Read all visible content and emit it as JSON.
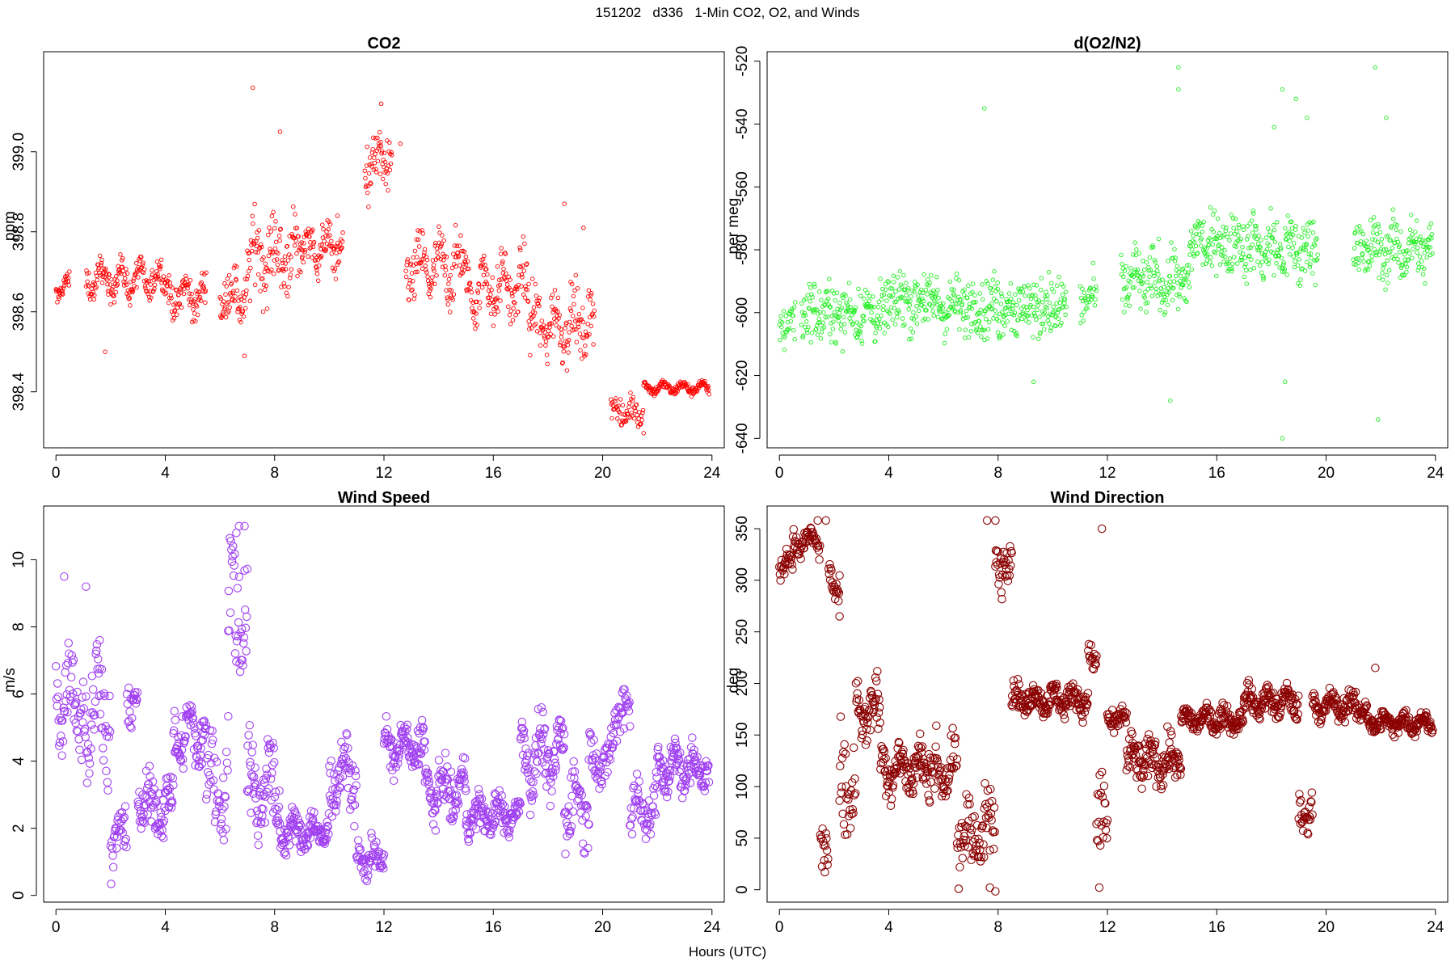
{
  "figure": {
    "suptitle": "151202   d336   1-Min CO2, O2, and Winds",
    "xlabel": "Hours (UTC)"
  },
  "chart_data": [
    {
      "type": "scatter",
      "title": "CO2",
      "ylabel": "ppm",
      "xlabel": "",
      "color": "#ff0000",
      "marker_size": "small",
      "xlim": [
        -0.45,
        24.45
      ],
      "ylim": [
        398.26,
        399.25
      ],
      "xticks": [
        0,
        4,
        8,
        12,
        16,
        20,
        24
      ],
      "yticks": [
        398.4,
        398.6,
        398.8,
        399.0
      ],
      "ytick_labels": [
        "398.4",
        "398.6",
        "398.8",
        "399.0"
      ],
      "segments": [
        {
          "x0": 0.0,
          "x1": 0.5,
          "mean": 398.66,
          "noise": 0.03,
          "wave": 0.02,
          "step": 0.017
        },
        {
          "x0": 1.1,
          "x1": 4.0,
          "mean": 398.68,
          "noise": 0.045,
          "wave": 0.03,
          "step": 0.017
        },
        {
          "x0": 4.0,
          "x1": 5.5,
          "mean": 398.64,
          "noise": 0.05,
          "wave": 0.03,
          "step": 0.017
        },
        {
          "x0": 6.0,
          "x1": 7.0,
          "mean": 398.64,
          "noise": 0.07,
          "wave": 0.03,
          "step": 0.017
        },
        {
          "x0": 7.0,
          "x1": 9.0,
          "mean": 398.74,
          "noise": 0.11,
          "wave": 0.04,
          "step": 0.017
        },
        {
          "x0": 9.0,
          "x1": 10.5,
          "mean": 398.76,
          "noise": 0.06,
          "wave": 0.03,
          "step": 0.017
        },
        {
          "x0": 11.3,
          "x1": 12.3,
          "mean": 398.97,
          "noise": 0.09,
          "wave": 0.03,
          "step": 0.017
        },
        {
          "x0": 12.8,
          "x1": 15.0,
          "mean": 398.71,
          "noise": 0.09,
          "wave": 0.04,
          "step": 0.017
        },
        {
          "x0": 15.0,
          "x1": 17.3,
          "mean": 398.66,
          "noise": 0.08,
          "wave": 0.05,
          "step": 0.017
        },
        {
          "x0": 17.3,
          "x1": 19.7,
          "mean": 398.57,
          "noise": 0.09,
          "wave": 0.04,
          "step": 0.017
        },
        {
          "x0": 20.3,
          "x1": 21.5,
          "mean": 398.35,
          "noise": 0.04,
          "wave": 0.02,
          "step": 0.02
        },
        {
          "x0": 21.5,
          "x1": 23.9,
          "mean": 398.41,
          "noise": 0.015,
          "wave": 0.01,
          "step": 0.017
        }
      ],
      "outliers": [
        {
          "x": 7.2,
          "y": 399.16
        },
        {
          "x": 11.9,
          "y": 399.12
        },
        {
          "x": 8.2,
          "y": 399.05
        },
        {
          "x": 12.6,
          "y": 399.02
        },
        {
          "x": 18.6,
          "y": 398.87
        },
        {
          "x": 19.3,
          "y": 398.81
        },
        {
          "x": 1.8,
          "y": 398.5
        },
        {
          "x": 6.9,
          "y": 398.49
        },
        {
          "x": 10.3,
          "y": 398.84
        }
      ]
    },
    {
      "type": "scatter",
      "title": "d(O2/N2)",
      "ylabel": "per meg",
      "xlabel": "",
      "color": "#22ee22",
      "marker_size": "small",
      "xlim": [
        -0.45,
        24.45
      ],
      "ylim": [
        -643,
        -517
      ],
      "xticks": [
        0,
        4,
        8,
        12,
        16,
        20,
        24
      ],
      "yticks": [
        -640,
        -620,
        -600,
        -580,
        -560,
        -540,
        -520
      ],
      "ytick_labels": [
        "-640",
        "-620",
        "-600",
        "-580",
        "-560",
        "-540",
        "-520"
      ],
      "segments": [
        {
          "x0": 0.0,
          "x1": 0.6,
          "mean": -603,
          "noise": 9,
          "wave": 2,
          "step": 0.02
        },
        {
          "x0": 0.8,
          "x1": 4.0,
          "mean": -600,
          "noise": 11,
          "wave": 2,
          "step": 0.017
        },
        {
          "x0": 4.0,
          "x1": 5.6,
          "mean": -596,
          "noise": 12,
          "wave": 2,
          "step": 0.017
        },
        {
          "x0": 5.6,
          "x1": 8.0,
          "mean": -598,
          "noise": 11,
          "wave": 2,
          "step": 0.017
        },
        {
          "x0": 8.0,
          "x1": 10.5,
          "mean": -598,
          "noise": 12,
          "wave": 2,
          "step": 0.017
        },
        {
          "x0": 11.0,
          "x1": 11.6,
          "mean": -596,
          "noise": 9,
          "wave": 2,
          "step": 0.02
        },
        {
          "x0": 12.5,
          "x1": 15.0,
          "mean": -590,
          "noise": 12,
          "wave": 3,
          "step": 0.017
        },
        {
          "x0": 15.0,
          "x1": 17.5,
          "mean": -578,
          "noise": 12,
          "wave": 3,
          "step": 0.017
        },
        {
          "x0": 17.5,
          "x1": 19.7,
          "mean": -580,
          "noise": 13,
          "wave": 3,
          "step": 0.017
        },
        {
          "x0": 21.0,
          "x1": 23.9,
          "mean": -580,
          "noise": 11,
          "wave": 3,
          "step": 0.017
        }
      ],
      "outliers": [
        {
          "x": 14.6,
          "y": -522
        },
        {
          "x": 14.6,
          "y": -529
        },
        {
          "x": 21.8,
          "y": -522
        },
        {
          "x": 7.5,
          "y": -535
        },
        {
          "x": 18.4,
          "y": -529
        },
        {
          "x": 18.9,
          "y": -532
        },
        {
          "x": 18.1,
          "y": -541
        },
        {
          "x": 19.3,
          "y": -538
        },
        {
          "x": 22.2,
          "y": -538
        },
        {
          "x": 14.3,
          "y": -628
        },
        {
          "x": 18.4,
          "y": -640
        },
        {
          "x": 21.9,
          "y": -634
        },
        {
          "x": 18.5,
          "y": -622
        },
        {
          "x": 9.3,
          "y": -622
        }
      ]
    },
    {
      "type": "scatter",
      "title": "Wind Speed",
      "ylabel": "m/s",
      "xlabel": "",
      "color": "#a040f0",
      "marker_size": "large",
      "xlim": [
        -0.45,
        24.45
      ],
      "ylim": [
        -0.2,
        11.6
      ],
      "xticks": [
        0,
        4,
        8,
        12,
        16,
        20,
        24
      ],
      "yticks": [
        0,
        2,
        4,
        6,
        8,
        10
      ],
      "ytick_labels": [
        "0",
        "2",
        "4",
        "6",
        "8",
        "10"
      ],
      "segments": [
        {
          "x0": 0.0,
          "x1": 1.0,
          "mean": 6.0,
          "noise": 1.6,
          "wave": 0.8,
          "step": 0.02
        },
        {
          "x0": 1.0,
          "x1": 2.0,
          "mean": 5.6,
          "noise": 1.8,
          "wave": 1.2,
          "step": 0.02
        },
        {
          "x0": 2.0,
          "x1": 2.6,
          "mean": 1.7,
          "noise": 1.0,
          "wave": 0.5,
          "step": 0.02
        },
        {
          "x0": 2.6,
          "x1": 3.0,
          "mean": 5.8,
          "noise": 0.7,
          "wave": 0.3,
          "step": 0.02
        },
        {
          "x0": 3.0,
          "x1": 4.3,
          "mean": 2.7,
          "noise": 0.9,
          "wave": 0.4,
          "step": 0.017
        },
        {
          "x0": 4.3,
          "x1": 5.5,
          "mean": 4.8,
          "noise": 1.0,
          "wave": 0.6,
          "step": 0.017
        },
        {
          "x0": 5.5,
          "x1": 6.3,
          "mean": 3.3,
          "noise": 1.6,
          "wave": 0.8,
          "step": 0.02
        },
        {
          "x0": 6.3,
          "x1": 7.0,
          "mean": 8.6,
          "noise": 2.4,
          "wave": 1.0,
          "step": 0.02
        },
        {
          "x0": 7.0,
          "x1": 8.2,
          "mean": 3.2,
          "noise": 1.5,
          "wave": 0.8,
          "step": 0.017
        },
        {
          "x0": 8.2,
          "x1": 10.0,
          "mean": 1.9,
          "noise": 0.6,
          "wave": 0.3,
          "step": 0.017
        },
        {
          "x0": 10.0,
          "x1": 11.0,
          "mean": 3.6,
          "noise": 0.9,
          "wave": 0.6,
          "step": 0.017
        },
        {
          "x0": 11.0,
          "x1": 12.0,
          "mean": 1.1,
          "noise": 0.6,
          "wave": 0.3,
          "step": 0.02
        },
        {
          "x0": 12.0,
          "x1": 13.5,
          "mean": 4.4,
          "noise": 0.7,
          "wave": 0.4,
          "step": 0.017
        },
        {
          "x0": 13.5,
          "x1": 15.0,
          "mean": 3.1,
          "noise": 0.8,
          "wave": 0.5,
          "step": 0.017
        },
        {
          "x0": 15.0,
          "x1": 17.0,
          "mean": 2.4,
          "noise": 0.6,
          "wave": 0.3,
          "step": 0.017
        },
        {
          "x0": 17.0,
          "x1": 18.6,
          "mean": 4.1,
          "noise": 1.0,
          "wave": 0.8,
          "step": 0.017
        },
        {
          "x0": 18.6,
          "x1": 19.5,
          "mean": 2.8,
          "noise": 1.2,
          "wave": 0.6,
          "step": 0.02
        },
        {
          "x0": 19.5,
          "x1": 20.4,
          "mean": 4.0,
          "noise": 0.9,
          "wave": 0.5,
          "step": 0.02
        },
        {
          "x0": 20.4,
          "x1": 21.0,
          "mean": 5.5,
          "noise": 0.8,
          "wave": 0.4,
          "step": 0.02
        },
        {
          "x0": 21.0,
          "x1": 22.0,
          "mean": 2.6,
          "noise": 0.9,
          "wave": 0.5,
          "step": 0.02
        },
        {
          "x0": 22.0,
          "x1": 23.9,
          "mean": 3.8,
          "noise": 0.7,
          "wave": 0.4,
          "step": 0.017
        }
      ],
      "outliers": [
        {
          "x": 6.7,
          "y": 11.0
        },
        {
          "x": 6.9,
          "y": 11.0
        },
        {
          "x": 6.6,
          "y": 10.8
        },
        {
          "x": 0.3,
          "y": 9.5
        },
        {
          "x": 1.6,
          "y": 7.6
        },
        {
          "x": 1.1,
          "y": 9.2
        }
      ]
    },
    {
      "type": "scatter",
      "title": "Wind Direction",
      "ylabel": "deg",
      "xlabel": "",
      "color": "#8b0000",
      "marker_size": "large",
      "xlim": [
        -0.45,
        24.45
      ],
      "ylim": [
        -12,
        372
      ],
      "xticks": [
        0,
        4,
        8,
        12,
        16,
        20,
        24
      ],
      "yticks": [
        0,
        50,
        100,
        150,
        200,
        250,
        300,
        350
      ],
      "ytick_labels": [
        "0",
        "50",
        "100",
        "150",
        "200",
        "250",
        "300",
        "350"
      ],
      "segments": [
        {
          "x0": 0.0,
          "x1": 0.5,
          "mean": 315,
          "noise": 12,
          "wave": 6,
          "step": 0.02
        },
        {
          "x0": 0.5,
          "x1": 1.5,
          "mean": 338,
          "noise": 12,
          "wave": 6,
          "step": 0.02
        },
        {
          "x0": 1.5,
          "x1": 1.8,
          "mean": 35,
          "noise": 28,
          "wave": 8,
          "step": 0.02
        },
        {
          "x0": 1.8,
          "x1": 2.2,
          "mean": 300,
          "noise": 18,
          "wave": 6,
          "step": 0.02
        },
        {
          "x0": 2.2,
          "x1": 2.8,
          "mean": 100,
          "noise": 55,
          "wave": 20,
          "step": 0.02
        },
        {
          "x0": 2.8,
          "x1": 3.7,
          "mean": 175,
          "noise": 35,
          "wave": 15,
          "step": 0.017
        },
        {
          "x0": 3.7,
          "x1": 5.5,
          "mean": 118,
          "noise": 28,
          "wave": 12,
          "step": 0.017
        },
        {
          "x0": 5.5,
          "x1": 6.5,
          "mean": 115,
          "noise": 30,
          "wave": 12,
          "step": 0.02
        },
        {
          "x0": 6.5,
          "x1": 7.9,
          "mean": 55,
          "noise": 45,
          "wave": 20,
          "step": 0.02
        },
        {
          "x0": 7.9,
          "x1": 8.5,
          "mean": 320,
          "noise": 30,
          "wave": 10,
          "step": 0.02
        },
        {
          "x0": 8.5,
          "x1": 11.3,
          "mean": 185,
          "noise": 15,
          "wave": 8,
          "step": 0.017
        },
        {
          "x0": 11.3,
          "x1": 11.6,
          "mean": 225,
          "noise": 15,
          "wave": 5,
          "step": 0.02
        },
        {
          "x0": 11.6,
          "x1": 12.0,
          "mean": 65,
          "noise": 55,
          "wave": 15,
          "step": 0.02
        },
        {
          "x0": 12.0,
          "x1": 12.7,
          "mean": 165,
          "noise": 12,
          "wave": 6,
          "step": 0.02
        },
        {
          "x0": 12.7,
          "x1": 14.7,
          "mean": 125,
          "noise": 25,
          "wave": 10,
          "step": 0.017
        },
        {
          "x0": 14.7,
          "x1": 17.0,
          "mean": 165,
          "noise": 12,
          "wave": 6,
          "step": 0.017
        },
        {
          "x0": 17.0,
          "x1": 19.0,
          "mean": 182,
          "noise": 14,
          "wave": 8,
          "step": 0.017
        },
        {
          "x0": 19.0,
          "x1": 19.5,
          "mean": 75,
          "noise": 25,
          "wave": 8,
          "step": 0.02
        },
        {
          "x0": 19.5,
          "x1": 21.5,
          "mean": 178,
          "noise": 14,
          "wave": 8,
          "step": 0.017
        },
        {
          "x0": 21.5,
          "x1": 23.9,
          "mean": 162,
          "noise": 10,
          "wave": 6,
          "step": 0.017
        }
      ],
      "outliers": [
        {
          "x": 1.4,
          "y": 358
        },
        {
          "x": 1.7,
          "y": 358
        },
        {
          "x": 7.6,
          "y": 358
        },
        {
          "x": 7.9,
          "y": 358
        },
        {
          "x": 11.8,
          "y": 350
        },
        {
          "x": 11.7,
          "y": 2
        },
        {
          "x": 7.7,
          "y": 2
        },
        {
          "x": 21.8,
          "y": 215
        },
        {
          "x": 2.2,
          "y": 265
        }
      ]
    }
  ]
}
